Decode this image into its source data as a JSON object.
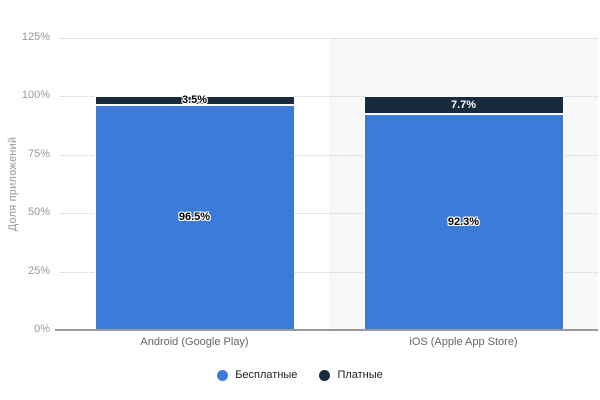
{
  "chart_data": {
    "type": "bar",
    "stacked": true,
    "categories": [
      "Android (Google Play)",
      "iOS (Apple App Store)"
    ],
    "series": [
      {
        "name": "Бесплатные",
        "color": "#3b7cd9",
        "values": [
          96.5,
          92.3
        ],
        "value_labels": [
          "96.5%",
          "92.3%"
        ]
      },
      {
        "name": "Платные",
        "color": "#182a3d",
        "values": [
          3.5,
          7.7
        ],
        "value_labels": [
          "3.5%",
          "7.7%"
        ]
      }
    ],
    "ylabel": "Доля приложений",
    "xlabel": "",
    "ylim": [
      0,
      125
    ],
    "yticks": [
      "0%",
      "25%",
      "50%",
      "75%",
      "100%",
      "125%"
    ],
    "grid": "horizontal-dotted",
    "legend_position": "bottom",
    "layout": {
      "alt_column_background": "#f8f8f8",
      "gridline_color": "#cccccc",
      "axis_line_color": "#999999",
      "tick_label_color": "#999999",
      "category_label_color": "#666666",
      "legend_text_color": "#222222"
    }
  }
}
